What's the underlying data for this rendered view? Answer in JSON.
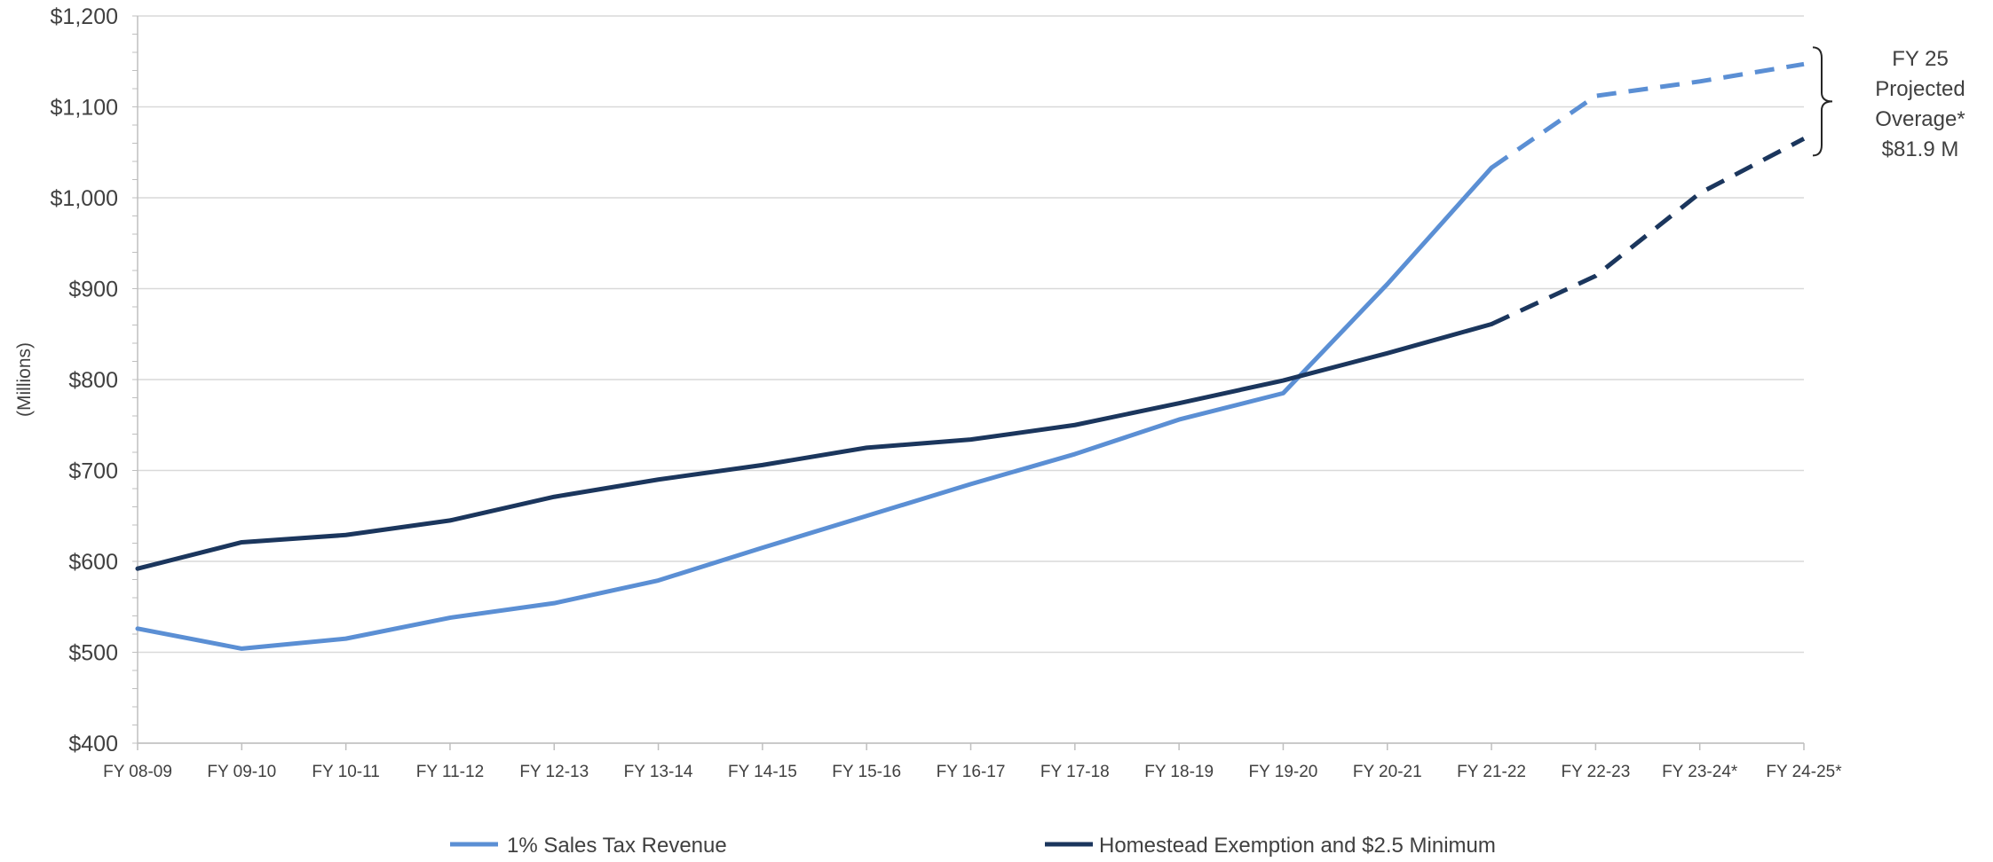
{
  "chart_data": {
    "type": "line",
    "ylabel": "(Millions)",
    "ylim": [
      400,
      1200
    ],
    "yticks": [
      "$400",
      "$500",
      "$600",
      "$700",
      "$800",
      "$900",
      "$1,000",
      "$1,100",
      "$1,200"
    ],
    "categories": [
      "FY 08-09",
      "FY 09-10",
      "FY 10-11",
      "FY 11-12",
      "FY 12-13",
      "FY 13-14",
      "FY 14-15",
      "FY 15-16",
      "FY 16-17",
      "FY 17-18",
      "FY 18-19",
      "FY 19-20",
      "FY 20-21",
      "FY 21-22",
      "FY 22-23",
      "FY 23-24*",
      "FY 24-25*"
    ],
    "projected_from_index": 13,
    "series": [
      {
        "name": "1% Sales Tax Revenue",
        "color": "#5B8FD4",
        "values": [
          526,
          504,
          515,
          538,
          554,
          579,
          615,
          650,
          685,
          718,
          756,
          785,
          905,
          1033,
          1112,
          1128,
          1147
        ]
      },
      {
        "name": "Homestead Exemption and $2.5 Minimum",
        "color": "#1B365D",
        "values": [
          592,
          621,
          629,
          645,
          671,
          690,
          706,
          725,
          734,
          750,
          774,
          799,
          829,
          861,
          914,
          1005,
          1065
        ]
      }
    ],
    "grid": true,
    "legend_position": "bottom",
    "annotation": {
      "lines": [
        "FY 25",
        "Projected",
        "Overage*",
        "$81.9 M"
      ]
    }
  }
}
